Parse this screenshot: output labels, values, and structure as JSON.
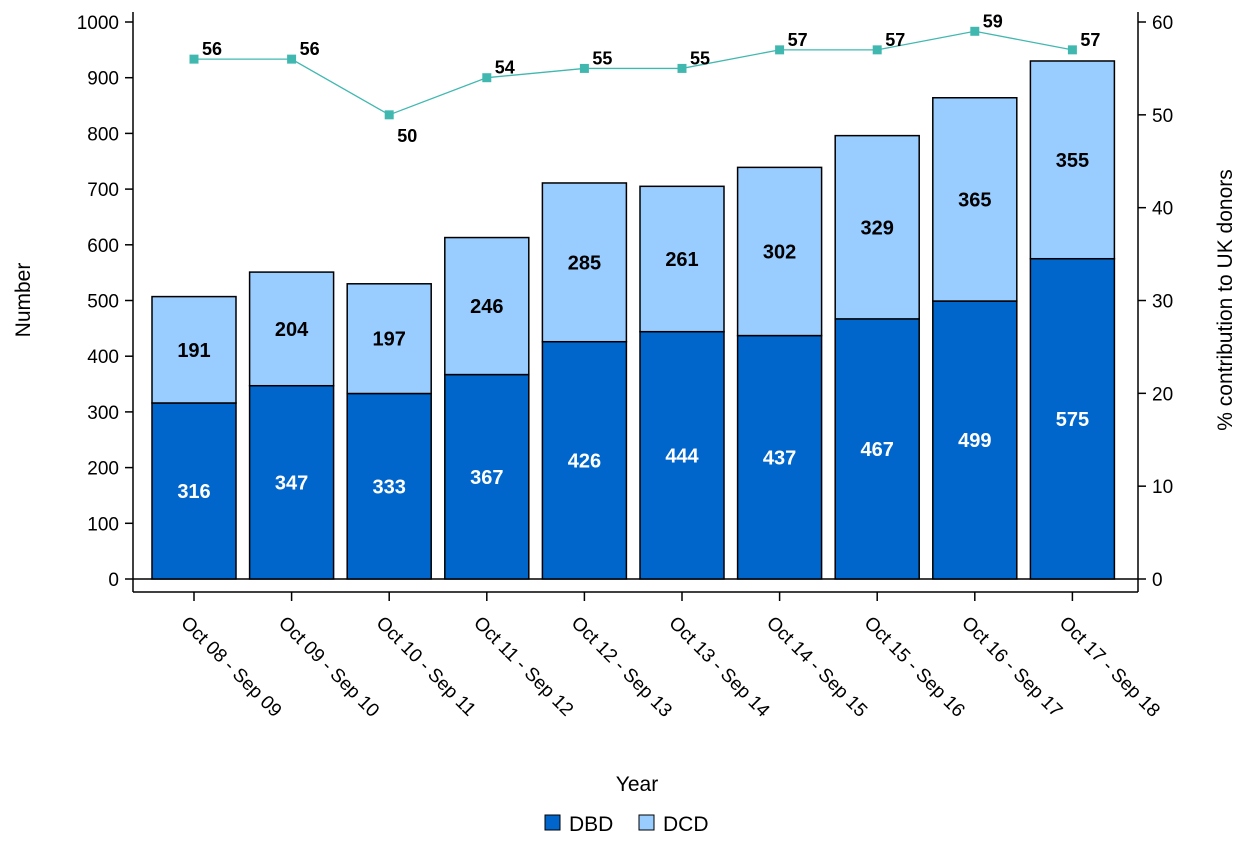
{
  "chart_data": {
    "type": "bar",
    "stacked": true,
    "categories": [
      "Oct 08 - Sep 09",
      "Oct 09 - Sep 10",
      "Oct 10 - Sep 11",
      "Oct 11 - Sep 12",
      "Oct 12 - Sep 13",
      "Oct 13 - Sep 14",
      "Oct 14 - Sep 15",
      "Oct 15 - Sep 16",
      "Oct 16 - Sep 17",
      "Oct 17 - Sep 18"
    ],
    "series": [
      {
        "name": "DBD",
        "values": [
          316,
          347,
          333,
          367,
          426,
          444,
          437,
          467,
          499,
          575
        ],
        "color": "#0066cc",
        "label_color": "#ffffff"
      },
      {
        "name": "DCD",
        "values": [
          191,
          204,
          197,
          246,
          285,
          261,
          302,
          329,
          365,
          355
        ],
        "color": "#99ccff",
        "label_color": "#000000"
      }
    ],
    "line": {
      "values": [
        56,
        56,
        50,
        54,
        55,
        55,
        57,
        57,
        59,
        57
      ],
      "color": "#40b8b0",
      "axis": "right"
    },
    "xlabel": "Year",
    "ylabel": "Number",
    "y2label": "% contribution to UK donors",
    "ylim": [
      0,
      1000
    ],
    "yticks": [
      0,
      100,
      200,
      300,
      400,
      500,
      600,
      700,
      800,
      900,
      1000
    ],
    "y2lim": [
      0,
      60
    ],
    "y2ticks": [
      0,
      10,
      20,
      30,
      40,
      50,
      60
    ],
    "grid": false,
    "legend": {
      "position": "bottom",
      "entries": [
        "DBD",
        "DCD"
      ]
    }
  }
}
